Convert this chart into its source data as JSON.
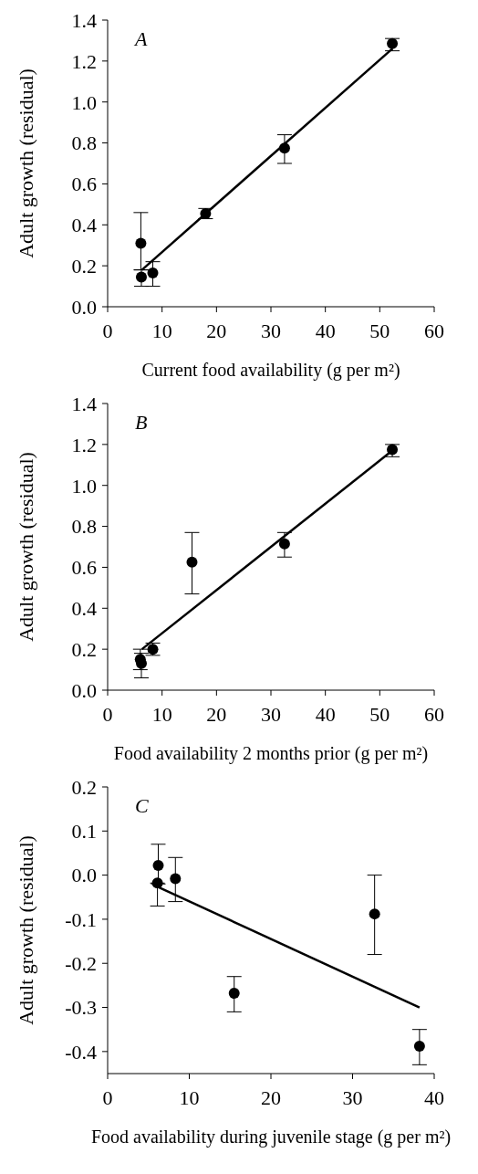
{
  "chart_data": [
    {
      "type": "scatter",
      "annotations": [
        "A"
      ],
      "xlabel": "Current food availability (g per m²)",
      "ylabel": "Adult growth (residual)",
      "xlim": [
        0,
        60
      ],
      "xticks": [
        0,
        10,
        20,
        30,
        40,
        50,
        60
      ],
      "ylim": [
        0,
        1.4
      ],
      "yticks": [
        {
          "value": 0,
          "label": "0.0"
        },
        {
          "value": 0.2,
          "label": "0.2"
        },
        {
          "value": 0.4,
          "label": "0.4"
        },
        {
          "value": 0.6,
          "label": "0.6"
        },
        {
          "value": 0.8,
          "label": "0.8"
        },
        {
          "value": 1.0,
          "label": "1.0"
        },
        {
          "value": 1.2,
          "label": "1.2"
        },
        {
          "value": 1.4,
          "label": "1.4"
        }
      ],
      "grid": false,
      "legend": false,
      "marker": "circle",
      "series": [
        {
          "color": "#000000",
          "x": [
            6.1,
            6.2,
            8.3,
            18,
            32.5,
            52.3
          ],
          "values": [
            0.31,
            0.145,
            0.165,
            0.455,
            0.775,
            1.285
          ],
          "errors": [
            [
              0.18,
              0.46
            ],
            [
              0.1,
              0.18
            ],
            [
              0.1,
              0.22
            ],
            [
              0.43,
              0.48
            ],
            [
              0.7,
              0.84
            ],
            [
              1.25,
              1.31
            ]
          ]
        },
        {
          "type": "line",
          "color": "#000000",
          "marker": "none",
          "line_style": "solid",
          "x": [
            6.3,
            52.3
          ],
          "values": [
            0.18,
            1.26
          ]
        }
      ]
    },
    {
      "type": "scatter",
      "annotations": [
        "B"
      ],
      "xlabel": "Food availability 2 months prior (g per m²)",
      "ylabel": "Adult growth (residual)",
      "xlim": [
        0,
        60
      ],
      "xticks": [
        0,
        10,
        20,
        30,
        40,
        50,
        60
      ],
      "ylim": [
        0,
        1.4
      ],
      "yticks": [
        {
          "value": 0,
          "label": "0.0"
        },
        {
          "value": 0.2,
          "label": "0.2"
        },
        {
          "value": 0.4,
          "label": "0.4"
        },
        {
          "value": 0.6,
          "label": "0.6"
        },
        {
          "value": 0.8,
          "label": "0.8"
        },
        {
          "value": 1.0,
          "label": "1.0"
        },
        {
          "value": 1.2,
          "label": "1.2"
        },
        {
          "value": 1.4,
          "label": "1.4"
        }
      ],
      "grid": false,
      "legend": false,
      "marker": "circle",
      "series": [
        {
          "color": "#000000",
          "x": [
            6.0,
            6.2,
            8.3,
            15.5,
            32.5,
            52.3
          ],
          "values": [
            0.15,
            0.13,
            0.2,
            0.625,
            0.715,
            1.175
          ],
          "errors": [
            [
              0.1,
              0.2
            ],
            [
              0.06,
              0.18
            ],
            [
              0.17,
              0.23
            ],
            [
              0.47,
              0.77
            ],
            [
              0.65,
              0.77
            ],
            [
              1.14,
              1.2
            ]
          ]
        },
        {
          "type": "line",
          "color": "#000000",
          "marker": "none",
          "line_style": "solid",
          "x": [
            6.3,
            52.3
          ],
          "values": [
            0.2,
            1.17
          ]
        }
      ]
    },
    {
      "type": "scatter",
      "annotations": [
        "C"
      ],
      "xlabel": "Food availability during juvenile stage (g per m²)",
      "ylabel": "Adult growth (residual)",
      "xlim": [
        0,
        40
      ],
      "xticks": [
        0,
        10,
        20,
        30,
        40
      ],
      "ylim": [
        -0.45,
        0.2
      ],
      "yticks": [
        {
          "value": -0.4,
          "label": "-0.4"
        },
        {
          "value": -0.3,
          "label": "-0.3"
        },
        {
          "value": -0.2,
          "label": "-0.2"
        },
        {
          "value": -0.1,
          "label": "-0.1"
        },
        {
          "value": 0,
          "label": "0.0"
        },
        {
          "value": 0.1,
          "label": "0.1"
        },
        {
          "value": 0.2,
          "label": "0.2"
        }
      ],
      "grid": false,
      "legend": false,
      "marker": "circle",
      "series": [
        {
          "color": "#000000",
          "x": [
            6.1,
            6.2,
            8.3,
            15.5,
            32.7,
            38.2
          ],
          "values": [
            -0.018,
            0.022,
            -0.008,
            -0.268,
            -0.088,
            -0.388
          ],
          "errors": [
            [
              -0.07,
              -0.018
            ],
            [
              -0.02,
              0.07
            ],
            [
              -0.06,
              0.04
            ],
            [
              -0.31,
              -0.23
            ],
            [
              -0.18,
              0.0
            ],
            [
              -0.43,
              -0.35
            ]
          ]
        },
        {
          "type": "line",
          "color": "#000000",
          "marker": "none",
          "line_style": "solid",
          "x": [
            6.3,
            38.2
          ],
          "values": [
            -0.028,
            -0.3
          ]
        }
      ]
    }
  ]
}
